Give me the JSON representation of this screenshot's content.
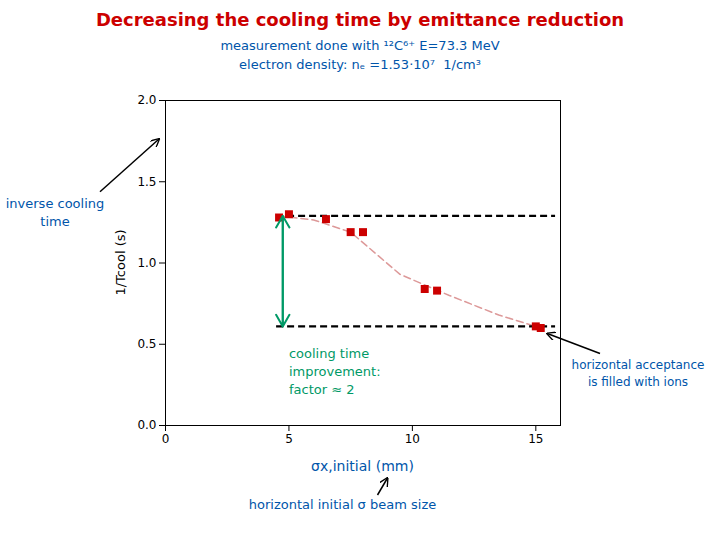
{
  "chart_data": {
    "type": "scatter",
    "title": "Decreasing the cooling time by emittance reduction",
    "title_color": "#cc0000",
    "subtitle": [
      "measurement done with ¹²C⁶⁺ E=73.3 MeV",
      "electron density: nₑ =1.53·10⁷  1/cm³"
    ],
    "subtitle_color": "#0055aa",
    "x_label": "σx,initial (mm)",
    "x_label_color": "#0055aa",
    "y_label": "1/Tcool (s)",
    "series": [
      {
        "type": "line",
        "line_style": "dashed",
        "color": "#dd9999",
        "x": [
          4.6,
          6.0,
          7.5,
          9.5,
          11.5,
          13.5,
          15.2
        ],
        "values": [
          1.29,
          1.265,
          1.19,
          0.93,
          0.8,
          0.68,
          0.6
        ]
      },
      {
        "type": "scatter",
        "marker": "square",
        "color": "#cc0000",
        "x": [
          4.6,
          5.0,
          6.5,
          7.5,
          8.0,
          10.5,
          11.0,
          15.0,
          15.2
        ],
        "values": [
          1.28,
          1.3,
          1.27,
          1.19,
          1.19,
          0.84,
          0.83,
          0.61,
          0.6
        ]
      }
    ],
    "hlines": [
      {
        "value": 1.29,
        "xmin": 4.5,
        "xmax": 15.8,
        "color": "#000000",
        "line_style": "dashed"
      },
      {
        "value": 0.61,
        "xmin": 4.5,
        "xmax": 15.8,
        "color": "#000000",
        "line_style": "dashed"
      }
    ],
    "arrow": {
      "x": 4.75,
      "y_top": 1.29,
      "y_bottom": 0.61,
      "color": "#009966"
    },
    "annotations": [
      {
        "text": "cooling time\nimprovement:\nfactor ≈ 2",
        "x": 5.0,
        "y": 0.34,
        "color": "#009966"
      },
      {
        "text": "inverse cooling\ntime",
        "color": "#0055aa"
      },
      {
        "text": "horizontal acceptance\nis filled with ions",
        "color": "#0055aa"
      },
      {
        "text": "horizontal initial σ beam size",
        "color": "#0055aa"
      }
    ],
    "xlim": [
      0,
      16
    ],
    "ylim": [
      0.0,
      2.0
    ],
    "xticks": [
      0,
      5,
      10,
      15
    ],
    "yticks": [
      {
        "value": 0.0,
        "label": "0.0"
      },
      0.5,
      {
        "value": 1.0,
        "label": "1.0"
      },
      1.5,
      {
        "value": 2.0,
        "label": "2.0"
      }
    ],
    "grid": false
  }
}
